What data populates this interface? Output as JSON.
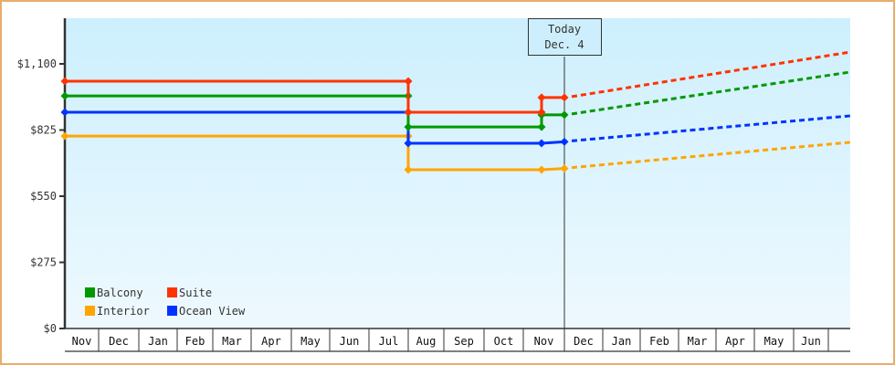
{
  "chart_data": {
    "type": "line",
    "title": "",
    "xlabel": "",
    "ylabel": "",
    "ylim": [
      0,
      1237
    ],
    "yticks": [
      {
        "value": 0,
        "label": "$0"
      },
      {
        "value": 275,
        "label": "$275"
      },
      {
        "value": 550,
        "label": "$550"
      },
      {
        "value": 825,
        "label": "$825"
      },
      {
        "value": 1100,
        "label": "$1,100"
      }
    ],
    "months": [
      "Nov",
      "Dec",
      "Jan",
      "Feb",
      "Mar",
      "Apr",
      "May",
      "Jun",
      "Jul",
      "Aug",
      "Sep",
      "Oct",
      "Nov",
      "Dec",
      "Jan",
      "Feb",
      "Mar",
      "Apr",
      "May",
      "Jun"
    ],
    "today_marker": {
      "line1": "Today",
      "line2": "Dec. 4"
    },
    "legend": [
      {
        "name": "Balcony",
        "color": "#009900"
      },
      {
        "name": "Suite",
        "color": "#ff3300"
      },
      {
        "name": "Interior",
        "color": "#ffa500"
      },
      {
        "name": "Ocean View",
        "color": "#0033ff"
      }
    ],
    "series": [
      {
        "name": "Suite",
        "color": "#ff3300",
        "actual": [
          {
            "date": "Nov start",
            "value": 1028
          },
          {
            "date": "Jul end",
            "value": 1028
          },
          {
            "date": "Jul end",
            "value": 899
          },
          {
            "date": "Nov",
            "value": 899
          },
          {
            "date": "Nov",
            "value": 960
          },
          {
            "date": "Dec. 4",
            "value": 960
          }
        ],
        "projected": [
          {
            "date": "Dec. 4",
            "value": 960
          },
          {
            "date": "Jun end",
            "value": 1149
          }
        ]
      },
      {
        "name": "Balcony",
        "color": "#009900",
        "actual": [
          {
            "date": "Nov start",
            "value": 967
          },
          {
            "date": "Jul end",
            "value": 967
          },
          {
            "date": "Jul end",
            "value": 838
          },
          {
            "date": "Nov",
            "value": 838
          },
          {
            "date": "Nov",
            "value": 888
          },
          {
            "date": "Dec. 4",
            "value": 888
          }
        ],
        "projected": [
          {
            "date": "Dec. 4",
            "value": 888
          },
          {
            "date": "Jun end",
            "value": 1066
          }
        ]
      },
      {
        "name": "Ocean View",
        "color": "#0033ff",
        "actual": [
          {
            "date": "Nov start",
            "value": 899
          },
          {
            "date": "Jul end",
            "value": 899
          },
          {
            "date": "Jul end",
            "value": 770
          },
          {
            "date": "Nov",
            "value": 770
          },
          {
            "date": "Dec. 4",
            "value": 776
          }
        ],
        "projected": [
          {
            "date": "Dec. 4",
            "value": 776
          },
          {
            "date": "Jun end",
            "value": 884
          }
        ]
      },
      {
        "name": "Interior",
        "color": "#ffa500",
        "actual": [
          {
            "date": "Nov start",
            "value": 800
          },
          {
            "date": "Jul end",
            "value": 800
          },
          {
            "date": "Jul end",
            "value": 660
          },
          {
            "date": "Nov",
            "value": 660
          },
          {
            "date": "Dec. 4",
            "value": 665
          }
        ],
        "projected": [
          {
            "date": "Dec. 4",
            "value": 665
          },
          {
            "date": "Jun end",
            "value": 774
          }
        ]
      }
    ]
  }
}
